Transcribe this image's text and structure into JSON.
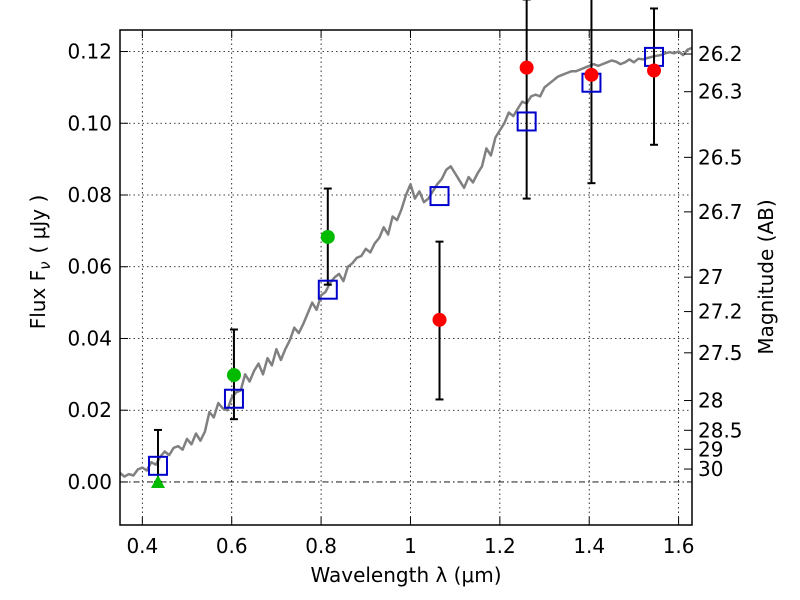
{
  "chart_data": {
    "type": "scatter",
    "title": "",
    "xlabel": "Wavelength  λ (μm)",
    "ylabel": "Flux  F",
    "ylabel_subscript": "ν",
    "ylabel_unit": "( μJy )",
    "y2label": "Magnitude (AB)",
    "xlim": [
      0.35,
      1.63
    ],
    "ylim": [
      -0.012,
      0.126
    ],
    "grid": true,
    "x_ticks": [
      0.4,
      0.6,
      0.8,
      1.0,
      1.2,
      1.4,
      1.6
    ],
    "x_tick_labels": [
      "0.4",
      "0.6",
      "0.8",
      "1",
      "1.2",
      "1.4",
      "1.6"
    ],
    "y_ticks": [
      0.0,
      0.02,
      0.04,
      0.06,
      0.08,
      0.1,
      0.12
    ],
    "y_tick_labels": [
      "0.00",
      "0.02",
      "0.04",
      "0.06",
      "0.08",
      "0.10",
      "0.12"
    ],
    "y2_ticks": [
      {
        "label": "26.2",
        "flux": 0.1193
      },
      {
        "label": "26.3",
        "flux": 0.1088
      },
      {
        "label": "26.5",
        "flux": 0.0905
      },
      {
        "label": "26.7",
        "flux": 0.0753
      },
      {
        "label": "27",
        "flux": 0.0571
      },
      {
        "label": "27.2",
        "flux": 0.0475
      },
      {
        "label": "27.5",
        "flux": 0.036
      },
      {
        "label": "28",
        "flux": 0.0227
      },
      {
        "label": "28.5",
        "flux": 0.0144
      },
      {
        "label": "29",
        "flux": 0.0091
      },
      {
        "label": "30",
        "flux": 0.0036
      }
    ],
    "zero_line": 0.0,
    "series": [
      {
        "name": "model-sed",
        "kind": "line",
        "color": "#808080",
        "x": [
          0.35,
          0.36,
          0.37,
          0.38,
          0.39,
          0.4,
          0.41,
          0.42,
          0.43,
          0.44,
          0.45,
          0.46,
          0.47,
          0.48,
          0.49,
          0.5,
          0.51,
          0.52,
          0.53,
          0.54,
          0.55,
          0.56,
          0.57,
          0.58,
          0.59,
          0.6,
          0.61,
          0.62,
          0.63,
          0.64,
          0.65,
          0.66,
          0.67,
          0.68,
          0.69,
          0.7,
          0.71,
          0.72,
          0.73,
          0.74,
          0.75,
          0.76,
          0.77,
          0.78,
          0.79,
          0.8,
          0.81,
          0.82,
          0.83,
          0.84,
          0.85,
          0.86,
          0.87,
          0.88,
          0.89,
          0.9,
          0.91,
          0.92,
          0.93,
          0.94,
          0.95,
          0.96,
          0.97,
          0.98,
          0.99,
          1.0,
          1.01,
          1.02,
          1.03,
          1.04,
          1.05,
          1.06,
          1.07,
          1.08,
          1.09,
          1.1,
          1.11,
          1.12,
          1.13,
          1.14,
          1.15,
          1.16,
          1.17,
          1.18,
          1.19,
          1.2,
          1.21,
          1.22,
          1.23,
          1.24,
          1.25,
          1.26,
          1.27,
          1.28,
          1.29,
          1.3,
          1.31,
          1.32,
          1.33,
          1.34,
          1.35,
          1.36,
          1.37,
          1.38,
          1.39,
          1.4,
          1.41,
          1.42,
          1.43,
          1.44,
          1.45,
          1.46,
          1.47,
          1.48,
          1.49,
          1.5,
          1.51,
          1.52,
          1.53,
          1.54,
          1.55,
          1.56,
          1.57,
          1.58,
          1.59,
          1.6,
          1.61,
          1.62,
          1.63
        ],
        "y": [
          0.0025,
          0.0015,
          0.0022,
          0.0018,
          0.0035,
          0.004,
          0.0032,
          0.0055,
          0.0048,
          0.007,
          0.0085,
          0.0075,
          0.0095,
          0.01,
          0.009,
          0.012,
          0.0105,
          0.0135,
          0.0115,
          0.014,
          0.0195,
          0.018,
          0.022,
          0.0205,
          0.02,
          0.0235,
          0.025,
          0.0255,
          0.03,
          0.028,
          0.031,
          0.033,
          0.03,
          0.0345,
          0.0325,
          0.037,
          0.034,
          0.037,
          0.0395,
          0.043,
          0.0415,
          0.044,
          0.047,
          0.05,
          0.048,
          0.052,
          0.053,
          0.0555,
          0.057,
          0.058,
          0.056,
          0.06,
          0.061,
          0.0625,
          0.063,
          0.065,
          0.064,
          0.0665,
          0.068,
          0.071,
          0.069,
          0.074,
          0.073,
          0.076,
          0.08,
          0.083,
          0.079,
          0.081,
          0.078,
          0.079,
          0.081,
          0.083,
          0.0845,
          0.087,
          0.088,
          0.086,
          0.084,
          0.082,
          0.085,
          0.0835,
          0.086,
          0.088,
          0.093,
          0.091,
          0.096,
          0.098,
          0.1,
          0.103,
          0.102,
          0.104,
          0.106,
          0.1055,
          0.1075,
          0.108,
          0.1075,
          0.11,
          0.111,
          0.112,
          0.113,
          0.1135,
          0.114,
          0.1145,
          0.1145,
          0.115,
          0.1155,
          0.116,
          0.1165,
          0.116,
          0.1165,
          0.117,
          0.1175,
          0.1172,
          0.1165,
          0.117,
          0.1178,
          0.117,
          0.118,
          0.1178,
          0.1182,
          0.1185,
          0.1188,
          0.119,
          0.1195,
          0.1198,
          0.1195,
          0.12,
          0.119,
          0.1205,
          0.121
        ]
      },
      {
        "name": "model-photometry",
        "kind": "open-square",
        "color": "#0000cc",
        "x": [
          0.435,
          0.605,
          0.815,
          1.065,
          1.26,
          1.405,
          1.545
        ],
        "y": [
          0.0045,
          0.0232,
          0.0536,
          0.0797,
          0.1005,
          0.1113,
          0.1185
        ]
      },
      {
        "name": "observed-red",
        "kind": "filled-circle",
        "color": "#ff0000",
        "x": [
          1.065,
          1.26,
          1.405,
          1.545
        ],
        "y": [
          0.0452,
          0.1155,
          0.1135,
          0.1147
        ],
        "yerr_low": [
          0.0222,
          0.0365,
          0.0302,
          0.0207
        ],
        "yerr_high": [
          0.0218,
          0.019,
          0.0215,
          0.0173
        ]
      },
      {
        "name": "observed-green",
        "kind": "filled-circle",
        "color": "#00bb00",
        "x": [
          0.605,
          0.815
        ],
        "y": [
          0.0298,
          0.0683
        ],
        "yerr_low": [
          0.0123,
          0.0133
        ],
        "yerr_high": [
          0.0127,
          0.0135
        ]
      },
      {
        "name": "upper-limit-green",
        "kind": "triangle",
        "color": "#00bb00",
        "x": [
          0.435
        ],
        "y": [
          0.0
        ],
        "yerr_low": [
          0.0
        ],
        "yerr_high": [
          0.0145
        ]
      }
    ]
  }
}
